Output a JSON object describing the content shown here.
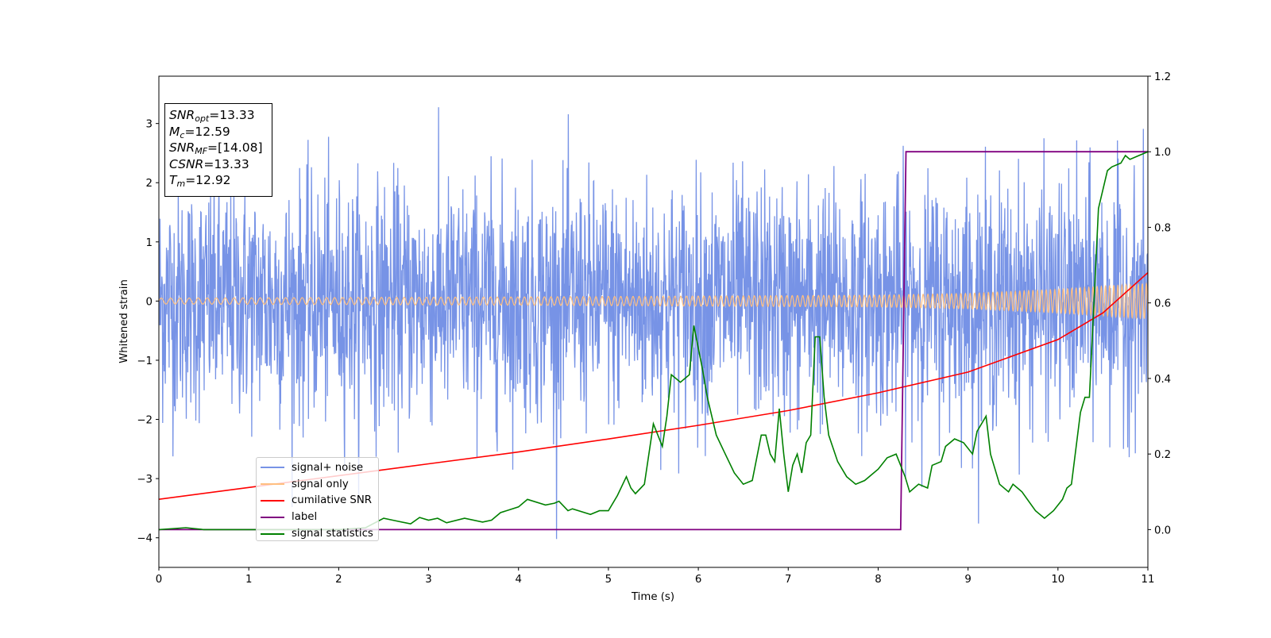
{
  "chart_data": {
    "type": "line",
    "xlabel": "Time (s)",
    "ylabel": "Whitened strain",
    "xlim": [
      0,
      11
    ],
    "ylim": [
      -4.5,
      3.8
    ],
    "y2lim": [
      -0.1,
      1.2
    ],
    "x_ticks": [
      "0",
      "1",
      "2",
      "3",
      "4",
      "5",
      "6",
      "7",
      "8",
      "9",
      "10",
      "11"
    ],
    "y_ticks": [
      "−4",
      "−3",
      "−2",
      "−1",
      "0",
      "1",
      "2",
      "3"
    ],
    "y2_ticks": [
      "0.0",
      "0.2",
      "0.4",
      "0.6",
      "0.8",
      "1.0",
      "1.2"
    ],
    "grid": false,
    "legend_position": "lower-left",
    "annotation": [
      {
        "sym": "SNR",
        "sub": "opt",
        "text": "=13.33"
      },
      {
        "sym": "M",
        "sub": "c",
        "text": "=12.59"
      },
      {
        "sym": "SNR",
        "sub": "MF",
        "text": "=[14.08]"
      },
      {
        "sym": "CSNR",
        "sub": "",
        "text": "=13.33"
      },
      {
        "sym": "T",
        "sub": "m",
        "text": "=12.92"
      }
    ],
    "series": [
      {
        "name": "signal+ noise",
        "color": "#7793e6",
        "axis": "left",
        "description_range": [
          -4.1,
          3.5
        ]
      },
      {
        "name": "signal only",
        "color": "#ffbf80",
        "axis": "left",
        "amplitude_envelope": {
          "x": [
            0,
            4,
            8,
            9,
            10,
            11
          ],
          "amp": [
            0.05,
            0.07,
            0.1,
            0.13,
            0.2,
            0.3
          ]
        }
      },
      {
        "name": "cumilative SNR",
        "color": "#ff0000",
        "axis": "left",
        "x": [
          0,
          1,
          2,
          3,
          4,
          5,
          6,
          7,
          8,
          9,
          10,
          10.5,
          11
        ],
        "y": [
          -3.35,
          -3.15,
          -2.95,
          -2.75,
          -2.55,
          -2.33,
          -2.1,
          -1.85,
          -1.55,
          -1.2,
          -0.65,
          -0.2,
          0.48
        ]
      },
      {
        "name": "label",
        "color": "#800080",
        "axis": "right",
        "x": [
          0,
          8.25,
          8.31,
          11
        ],
        "y": [
          0.0,
          0.0,
          1.0,
          1.0
        ]
      },
      {
        "name": "signal statistics",
        "color": "#008000",
        "axis": "right",
        "x": [
          0,
          0.3,
          0.5,
          1.0,
          1.5,
          2.0,
          2.3,
          2.5,
          2.6,
          2.8,
          2.9,
          3.0,
          3.1,
          3.2,
          3.4,
          3.6,
          3.7,
          3.8,
          4.0,
          4.1,
          4.3,
          4.4,
          4.45,
          4.55,
          4.6,
          4.8,
          4.9,
          5.0,
          5.1,
          5.2,
          5.25,
          5.3,
          5.4,
          5.5,
          5.6,
          5.65,
          5.7,
          5.75,
          5.8,
          5.9,
          5.95,
          6.0,
          6.05,
          6.1,
          6.2,
          6.3,
          6.4,
          6.5,
          6.6,
          6.7,
          6.75,
          6.8,
          6.85,
          6.9,
          6.95,
          7.0,
          7.05,
          7.1,
          7.15,
          7.2,
          7.25,
          7.3,
          7.35,
          7.4,
          7.45,
          7.55,
          7.65,
          7.75,
          7.85,
          8.0,
          8.1,
          8.2,
          8.3,
          8.35,
          8.45,
          8.55,
          8.6,
          8.7,
          8.75,
          8.85,
          8.95,
          9.05,
          9.1,
          9.2,
          9.25,
          9.35,
          9.45,
          9.5,
          9.55,
          9.6,
          9.75,
          9.85,
          9.95,
          10.05,
          10.1,
          10.15,
          10.25,
          10.3,
          10.35,
          10.45,
          10.55,
          10.6,
          10.7,
          10.75,
          10.8,
          10.9,
          11.0
        ],
        "y": [
          0.0,
          0.005,
          0.0,
          0.0,
          0.0,
          0.0,
          0.005,
          0.03,
          0.025,
          0.015,
          0.032,
          0.025,
          0.03,
          0.018,
          0.03,
          0.02,
          0.025,
          0.045,
          0.06,
          0.08,
          0.065,
          0.07,
          0.075,
          0.05,
          0.055,
          0.04,
          0.05,
          0.05,
          0.09,
          0.14,
          0.11,
          0.095,
          0.12,
          0.28,
          0.22,
          0.3,
          0.41,
          0.4,
          0.39,
          0.41,
          0.54,
          0.48,
          0.42,
          0.35,
          0.25,
          0.2,
          0.15,
          0.12,
          0.13,
          0.25,
          0.25,
          0.2,
          0.18,
          0.32,
          0.2,
          0.1,
          0.17,
          0.2,
          0.15,
          0.23,
          0.25,
          0.51,
          0.51,
          0.35,
          0.25,
          0.18,
          0.14,
          0.12,
          0.13,
          0.16,
          0.19,
          0.2,
          0.14,
          0.1,
          0.12,
          0.11,
          0.17,
          0.18,
          0.22,
          0.24,
          0.23,
          0.2,
          0.26,
          0.3,
          0.2,
          0.12,
          0.1,
          0.12,
          0.11,
          0.1,
          0.05,
          0.03,
          0.05,
          0.08,
          0.11,
          0.12,
          0.31,
          0.35,
          0.35,
          0.85,
          0.95,
          0.96,
          0.97,
          0.99,
          0.98,
          0.99,
          1.0
        ]
      }
    ]
  }
}
